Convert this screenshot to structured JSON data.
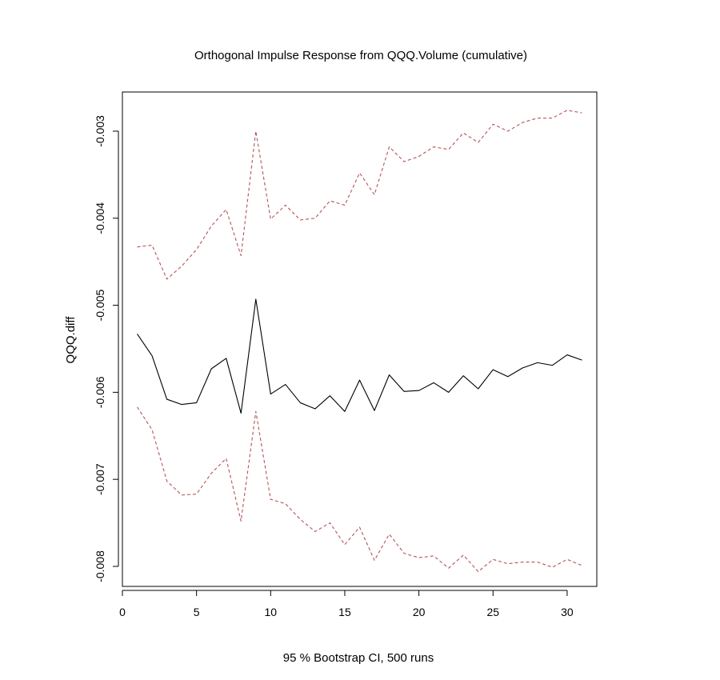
{
  "chart_data": {
    "type": "line",
    "title": "Orthogonal Impulse Response from QQQ.Volume (cumulative)",
    "xlabel": "95 % Bootstrap CI,  500 runs",
    "ylabel": "QQQ.diff",
    "xlim": [
      0,
      32
    ],
    "ylim": [
      -0.00823,
      -0.00255
    ],
    "x_ticks": [
      0,
      5,
      10,
      15,
      20,
      25,
      30
    ],
    "x_tick_labels": [
      "0",
      "5",
      "10",
      "15",
      "20",
      "25",
      "30"
    ],
    "y_ticks": [
      -0.008,
      -0.007,
      -0.006,
      -0.005,
      -0.004,
      -0.003
    ],
    "y_tick_labels": [
      "-0.008",
      "-0.007",
      "-0.006",
      "-0.005",
      "-0.004",
      "-0.003"
    ],
    "grid": false,
    "legend": "none",
    "x": [
      1,
      2,
      3,
      4,
      5,
      6,
      7,
      8,
      9,
      10,
      11,
      12,
      13,
      14,
      15,
      16,
      17,
      18,
      19,
      20,
      21,
      22,
      23,
      24,
      25,
      26,
      27,
      28,
      29,
      30,
      31
    ],
    "series": [
      {
        "role": "irf",
        "style": "solid",
        "color": "#000000",
        "values": [
          -0.00533,
          -0.00558,
          -0.00608,
          -0.00614,
          -0.00612,
          -0.00573,
          -0.00561,
          -0.00624,
          -0.00493,
          -0.00602,
          -0.00591,
          -0.00612,
          -0.00619,
          -0.00604,
          -0.00622,
          -0.00586,
          -0.00621,
          -0.0058,
          -0.00599,
          -0.00598,
          -0.00589,
          -0.006,
          -0.00581,
          -0.00596,
          -0.00574,
          -0.00582,
          -0.00572,
          -0.00566,
          -0.00569,
          -0.00557,
          -0.00563
        ]
      },
      {
        "role": "upper",
        "style": "dashed",
        "color": "#b5545a",
        "values": [
          -0.00433,
          -0.00431,
          -0.0047,
          -0.00455,
          -0.00436,
          -0.00409,
          -0.0039,
          -0.00443,
          -0.003,
          -0.00401,
          -0.00385,
          -0.00402,
          -0.004,
          -0.0038,
          -0.00385,
          -0.00348,
          -0.00373,
          -0.00318,
          -0.00335,
          -0.00329,
          -0.00318,
          -0.00321,
          -0.00302,
          -0.00313,
          -0.00292,
          -0.003,
          -0.0029,
          -0.00285,
          -0.00285,
          -0.00276,
          -0.00279
        ]
      },
      {
        "role": "lower",
        "style": "dashed",
        "color": "#b5545a",
        "values": [
          -0.00617,
          -0.00643,
          -0.00702,
          -0.00718,
          -0.00717,
          -0.00693,
          -0.00676,
          -0.00748,
          -0.00622,
          -0.00723,
          -0.00728,
          -0.00746,
          -0.0076,
          -0.0075,
          -0.00775,
          -0.00755,
          -0.00793,
          -0.00763,
          -0.00785,
          -0.0079,
          -0.00788,
          -0.00802,
          -0.00787,
          -0.00806,
          -0.00792,
          -0.00797,
          -0.00795,
          -0.00795,
          -0.00801,
          -0.00792,
          -0.00799
        ]
      }
    ]
  }
}
